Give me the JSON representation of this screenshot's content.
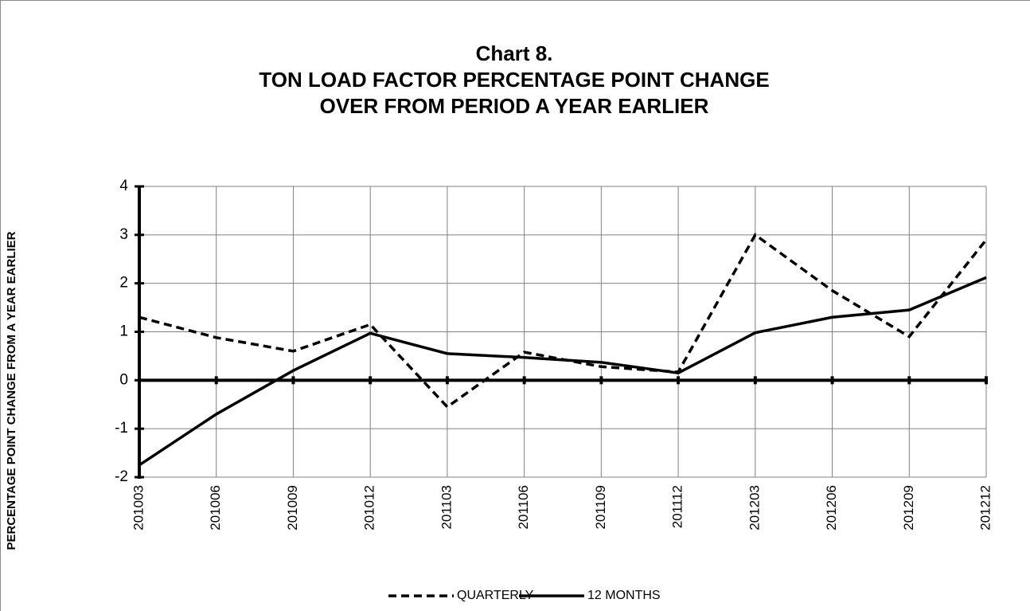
{
  "chart_data": {
    "type": "line",
    "title": [
      "Chart 8.",
      "TON LOAD FACTOR PERCENTAGE POINT CHANGE",
      "OVER FROM PERIOD A YEAR EARLIER"
    ],
    "y_label": "PERCENTAGE POINT CHANGE  FROM A YEAR EARLIER",
    "categories": [
      "201003",
      "201006",
      "201009",
      "201012",
      "201103",
      "201106",
      "201109",
      "201112",
      "201203",
      "201206",
      "201209",
      "201212"
    ],
    "series": [
      {
        "name": "QUARTERLY",
        "color": "#000000",
        "style": "dashed",
        "values": [
          1.3,
          0.88,
          0.6,
          1.15,
          -0.55,
          0.58,
          0.28,
          0.17,
          3.0,
          1.85,
          0.9,
          2.9
        ]
      },
      {
        "name": "12 MONTHS",
        "color": "#000000",
        "style": "solid",
        "values": [
          -1.75,
          -0.7,
          0.2,
          0.97,
          0.55,
          0.47,
          0.37,
          0.15,
          0.98,
          1.3,
          1.45,
          2.12
        ]
      }
    ],
    "ylim": [
      -2,
      4
    ],
    "yticks": [
      -2,
      -1,
      0,
      1,
      2,
      3,
      4
    ],
    "grid": true,
    "legend": "bottom"
  }
}
